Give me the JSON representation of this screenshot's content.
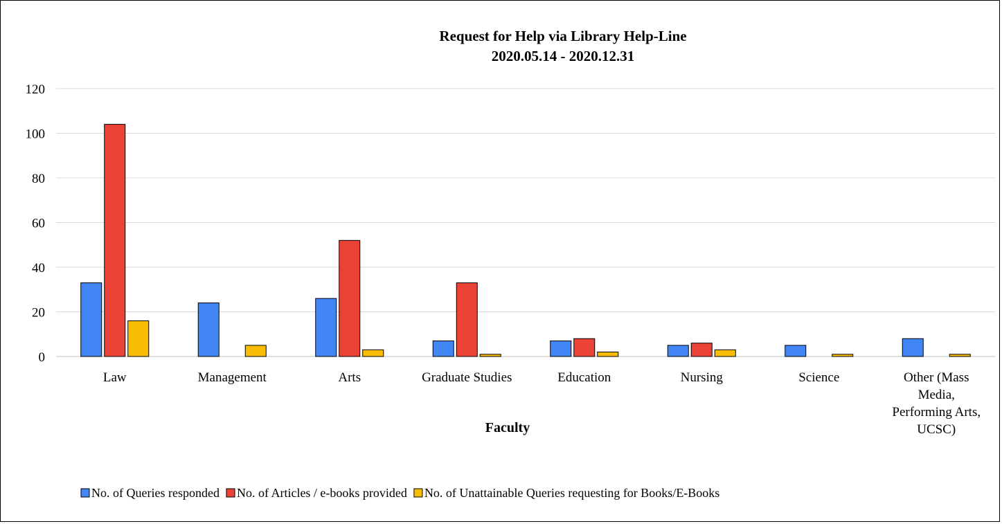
{
  "chart_data": {
    "type": "bar",
    "title": "Request for Help via Library Help-Line",
    "subtitle": "2020.05.14 - 2020.12.31",
    "xlabel": "Faculty",
    "ylabel": "",
    "ylim": [
      0,
      120
    ],
    "yticks": [
      "0",
      "20",
      "40",
      "60",
      "80",
      "100",
      "120"
    ],
    "grid": true,
    "legend_position": "bottom",
    "categories": [
      "Law",
      "Management",
      "Arts",
      "Graduate Studies",
      "Education",
      "Nursing",
      "Science",
      "Other (Mass Media, Performing Arts, UCSC)"
    ],
    "category_label_lines": [
      [
        "Law"
      ],
      [
        "Management"
      ],
      [
        "Arts"
      ],
      [
        "Graduate Studies"
      ],
      [
        "Education"
      ],
      [
        "Nursing"
      ],
      [
        "Science"
      ],
      [
        "Other (Mass",
        "Media,",
        "Performing Arts,",
        "UCSC)"
      ]
    ],
    "series": [
      {
        "name": "No. of Queries responded",
        "color": "#4285f4",
        "values": [
          33,
          24,
          26,
          7,
          7,
          5,
          5,
          8
        ]
      },
      {
        "name": "No. of Articles / e-books provided",
        "color": "#ea4335",
        "values": [
          104,
          0,
          52,
          33,
          8,
          6,
          0,
          0
        ]
      },
      {
        "name": "No. of Unattainable Queries requesting for Books/E-Books",
        "color": "#fbbc04",
        "values": [
          16,
          5,
          3,
          1,
          2,
          3,
          1,
          1
        ]
      }
    ]
  }
}
